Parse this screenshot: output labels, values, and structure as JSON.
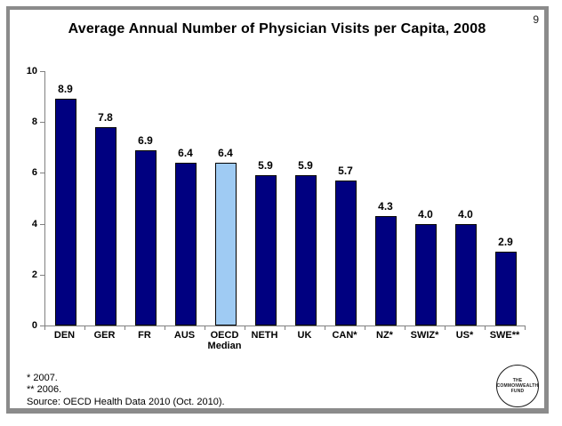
{
  "slide": {
    "page_number": "9",
    "title": "Average Annual Number of Physician Visits per Capita, 2008"
  },
  "chart_data": {
    "type": "bar",
    "title": "Average Annual Number of Physician Visits per Capita, 2008",
    "categories": [
      "DEN",
      "GER",
      "FR",
      "AUS",
      "OECD\nMedian",
      "NETH",
      "UK",
      "CAN*",
      "NZ*",
      "SWIZ*",
      "US*",
      "SWE**"
    ],
    "values": [
      8.9,
      7.8,
      6.9,
      6.4,
      6.4,
      5.9,
      5.9,
      5.7,
      4.3,
      4.0,
      4.0,
      2.9
    ],
    "value_labels": [
      "8.9",
      "7.8",
      "6.9",
      "6.4",
      "6.4",
      "5.9",
      "5.9",
      "5.7",
      "4.3",
      "4.0",
      "4.0",
      "2.9"
    ],
    "highlight_index": 4,
    "colors": {
      "bar": "#000080",
      "highlight": "#9FCBF3",
      "bar_border": "#000000",
      "axis": "#808080"
    },
    "xlabel": "",
    "ylabel": "",
    "ylim": [
      0,
      10
    ],
    "ytick_step": 2,
    "grid": false,
    "legend": null
  },
  "footnotes": {
    "note1": "* 2007.",
    "note2": "** 2006.",
    "source": "Source: OECD Health Data 2010 (Oct. 2010)."
  },
  "logo": {
    "line1": "THE",
    "line2": "COMMONWEALTH",
    "line3": "FUND"
  }
}
